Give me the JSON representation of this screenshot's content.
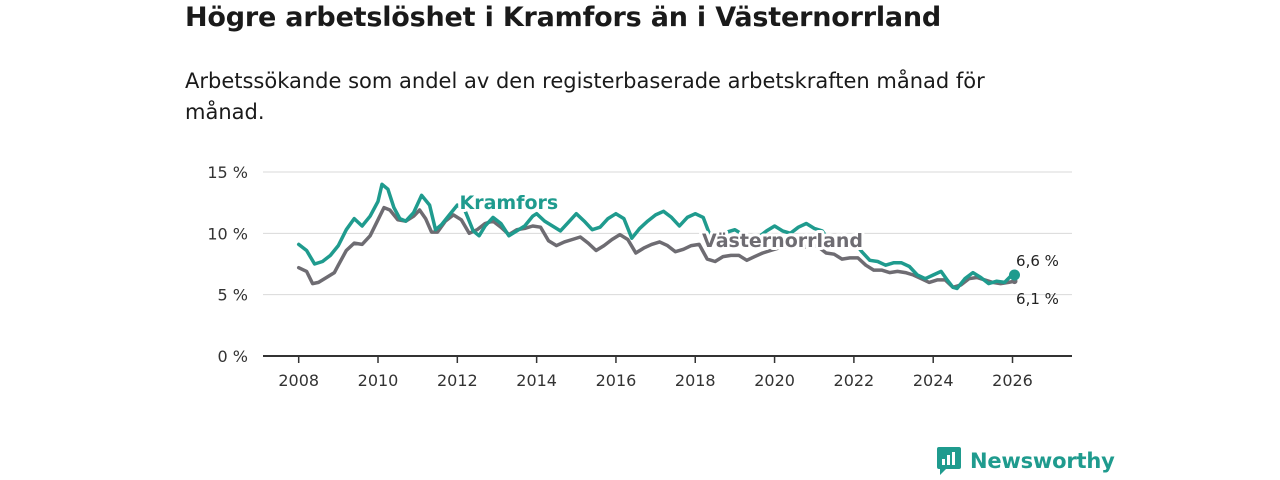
{
  "header": {
    "title": "Högre arbetslöshet i Kramfors än i Västernorrland",
    "subtitle": "Arbetssökande som andel av den registerbaserade arbetskraften månad för månad."
  },
  "brand": {
    "name": "Newsworthy",
    "color": "#1f9b8e",
    "icon": "bar-chart-speech-icon"
  },
  "chart_data": {
    "type": "line",
    "title": "Högre arbetslöshet i Kramfors än i Västernorrland",
    "xlabel": "",
    "ylabel": "",
    "xlim": [
      2007.1,
      2027.5
    ],
    "ylim": [
      0,
      15
    ],
    "grid": true,
    "x_ticks": [
      2008,
      2010,
      2012,
      2014,
      2016,
      2018,
      2020,
      2022,
      2024,
      2026
    ],
    "x_tick_labels": [
      "2008",
      "2010",
      "2012",
      "2014",
      "2016",
      "2018",
      "2020",
      "2022",
      "2024",
      "2026"
    ],
    "y_ticks": [
      0,
      5,
      10,
      15
    ],
    "y_tick_labels": [
      "0 %",
      "5 %",
      "10 %",
      "15 %"
    ],
    "series": [
      {
        "name": "Västernorrland",
        "color": "#6e6c72",
        "end_label": "6,1 %",
        "points": [
          [
            2008.0,
            7.2
          ],
          [
            2008.2,
            6.9
          ],
          [
            2008.35,
            5.9
          ],
          [
            2008.5,
            6.0
          ],
          [
            2008.7,
            6.4
          ],
          [
            2008.9,
            6.8
          ],
          [
            2009.0,
            7.4
          ],
          [
            2009.2,
            8.6
          ],
          [
            2009.4,
            9.2
          ],
          [
            2009.6,
            9.1
          ],
          [
            2009.8,
            9.8
          ],
          [
            2010.0,
            11.1
          ],
          [
            2010.15,
            12.1
          ],
          [
            2010.3,
            11.9
          ],
          [
            2010.5,
            11.1
          ],
          [
            2010.7,
            11.0
          ],
          [
            2010.9,
            11.4
          ],
          [
            2011.05,
            11.9
          ],
          [
            2011.2,
            11.2
          ],
          [
            2011.35,
            10.1
          ],
          [
            2011.5,
            10.1
          ],
          [
            2011.7,
            11.0
          ],
          [
            2011.9,
            11.5
          ],
          [
            2012.1,
            11.1
          ],
          [
            2012.3,
            10.0
          ],
          [
            2012.5,
            10.3
          ],
          [
            2012.7,
            10.8
          ],
          [
            2012.9,
            11.0
          ],
          [
            2013.1,
            10.5
          ],
          [
            2013.3,
            9.9
          ],
          [
            2013.5,
            10.3
          ],
          [
            2013.7,
            10.4
          ],
          [
            2013.9,
            10.6
          ],
          [
            2014.1,
            10.5
          ],
          [
            2014.3,
            9.4
          ],
          [
            2014.5,
            9.0
          ],
          [
            2014.7,
            9.3
          ],
          [
            2014.9,
            9.5
          ],
          [
            2015.1,
            9.7
          ],
          [
            2015.3,
            9.2
          ],
          [
            2015.5,
            8.6
          ],
          [
            2015.7,
            9.0
          ],
          [
            2015.9,
            9.5
          ],
          [
            2016.1,
            9.9
          ],
          [
            2016.3,
            9.5
          ],
          [
            2016.5,
            8.4
          ],
          [
            2016.7,
            8.8
          ],
          [
            2016.9,
            9.1
          ],
          [
            2017.1,
            9.3
          ],
          [
            2017.3,
            9.0
          ],
          [
            2017.5,
            8.5
          ],
          [
            2017.7,
            8.7
          ],
          [
            2017.9,
            9.0
          ],
          [
            2018.1,
            9.1
          ],
          [
            2018.3,
            7.9
          ],
          [
            2018.5,
            7.7
          ],
          [
            2018.7,
            8.1
          ],
          [
            2018.9,
            8.2
          ],
          [
            2019.1,
            8.2
          ],
          [
            2019.3,
            7.8
          ],
          [
            2019.5,
            8.1
          ],
          [
            2019.7,
            8.4
          ],
          [
            2019.9,
            8.6
          ],
          [
            2020.1,
            8.8
          ],
          [
            2020.3,
            8.9
          ],
          [
            2020.5,
            9.1
          ],
          [
            2020.7,
            8.8
          ],
          [
            2020.9,
            9.1
          ],
          [
            2021.1,
            8.9
          ],
          [
            2021.3,
            8.4
          ],
          [
            2021.5,
            8.3
          ],
          [
            2021.7,
            7.9
          ],
          [
            2021.9,
            8.0
          ],
          [
            2022.1,
            8.0
          ],
          [
            2022.3,
            7.4
          ],
          [
            2022.5,
            7.0
          ],
          [
            2022.7,
            7.0
          ],
          [
            2022.9,
            6.8
          ],
          [
            2023.1,
            6.9
          ],
          [
            2023.3,
            6.8
          ],
          [
            2023.5,
            6.6
          ],
          [
            2023.7,
            6.3
          ],
          [
            2023.9,
            6.0
          ],
          [
            2024.1,
            6.2
          ],
          [
            2024.3,
            6.2
          ],
          [
            2024.5,
            5.6
          ],
          [
            2024.7,
            5.8
          ],
          [
            2024.9,
            6.3
          ],
          [
            2025.1,
            6.4
          ],
          [
            2025.3,
            6.2
          ],
          [
            2025.5,
            6.0
          ],
          [
            2025.7,
            5.9
          ],
          [
            2025.9,
            6.0
          ],
          [
            2026.05,
            6.1
          ]
        ]
      },
      {
        "name": "Kramfors",
        "color": "#1f9b8e",
        "end_label": "6,6 %",
        "points": [
          [
            2008.0,
            9.1
          ],
          [
            2008.2,
            8.6
          ],
          [
            2008.4,
            7.5
          ],
          [
            2008.6,
            7.7
          ],
          [
            2008.8,
            8.2
          ],
          [
            2009.0,
            9.0
          ],
          [
            2009.2,
            10.3
          ],
          [
            2009.4,
            11.2
          ],
          [
            2009.6,
            10.6
          ],
          [
            2009.8,
            11.4
          ],
          [
            2010.0,
            12.6
          ],
          [
            2010.1,
            14.0
          ],
          [
            2010.25,
            13.6
          ],
          [
            2010.4,
            12.1
          ],
          [
            2010.55,
            11.2
          ],
          [
            2010.7,
            11.0
          ],
          [
            2010.9,
            11.7
          ],
          [
            2011.1,
            13.1
          ],
          [
            2011.3,
            12.3
          ],
          [
            2011.45,
            10.3
          ],
          [
            2011.6,
            10.7
          ],
          [
            2011.8,
            11.5
          ],
          [
            2012.0,
            12.3
          ],
          [
            2012.2,
            11.8
          ],
          [
            2012.4,
            10.2
          ],
          [
            2012.55,
            9.8
          ],
          [
            2012.7,
            10.6
          ],
          [
            2012.9,
            11.3
          ],
          [
            2013.1,
            10.8
          ],
          [
            2013.3,
            9.8
          ],
          [
            2013.5,
            10.2
          ],
          [
            2013.7,
            10.6
          ],
          [
            2013.9,
            11.4
          ],
          [
            2014.0,
            11.6
          ],
          [
            2014.2,
            11.0
          ],
          [
            2014.4,
            10.6
          ],
          [
            2014.6,
            10.2
          ],
          [
            2014.8,
            10.9
          ],
          [
            2015.0,
            11.6
          ],
          [
            2015.2,
            11.0
          ],
          [
            2015.4,
            10.3
          ],
          [
            2015.6,
            10.5
          ],
          [
            2015.8,
            11.2
          ],
          [
            2016.0,
            11.6
          ],
          [
            2016.2,
            11.2
          ],
          [
            2016.4,
            9.6
          ],
          [
            2016.6,
            10.4
          ],
          [
            2016.8,
            11.0
          ],
          [
            2017.0,
            11.5
          ],
          [
            2017.2,
            11.8
          ],
          [
            2017.4,
            11.3
          ],
          [
            2017.6,
            10.6
          ],
          [
            2017.8,
            11.3
          ],
          [
            2018.0,
            11.6
          ],
          [
            2018.2,
            11.3
          ],
          [
            2018.4,
            9.6
          ],
          [
            2018.6,
            9.4
          ],
          [
            2018.8,
            10.1
          ],
          [
            2019.0,
            10.3
          ],
          [
            2019.2,
            9.9
          ],
          [
            2019.4,
            9.4
          ],
          [
            2019.6,
            9.7
          ],
          [
            2019.8,
            10.2
          ],
          [
            2020.0,
            10.6
          ],
          [
            2020.2,
            10.2
          ],
          [
            2020.4,
            10.0
          ],
          [
            2020.6,
            10.5
          ],
          [
            2020.8,
            10.8
          ],
          [
            2021.0,
            10.4
          ],
          [
            2021.2,
            10.2
          ],
          [
            2021.4,
            9.3
          ],
          [
            2021.6,
            9.0
          ],
          [
            2021.8,
            9.2
          ],
          [
            2022.0,
            9.3
          ],
          [
            2022.2,
            8.5
          ],
          [
            2022.4,
            7.8
          ],
          [
            2022.6,
            7.7
          ],
          [
            2022.8,
            7.4
          ],
          [
            2023.0,
            7.6
          ],
          [
            2023.2,
            7.6
          ],
          [
            2023.4,
            7.3
          ],
          [
            2023.6,
            6.6
          ],
          [
            2023.8,
            6.3
          ],
          [
            2024.0,
            6.6
          ],
          [
            2024.2,
            6.9
          ],
          [
            2024.35,
            6.2
          ],
          [
            2024.5,
            5.6
          ],
          [
            2024.6,
            5.5
          ],
          [
            2024.8,
            6.3
          ],
          [
            2025.0,
            6.8
          ],
          [
            2025.2,
            6.4
          ],
          [
            2025.4,
            5.9
          ],
          [
            2025.6,
            6.1
          ],
          [
            2025.8,
            6.0
          ],
          [
            2025.95,
            6.5
          ],
          [
            2026.05,
            6.6
          ]
        ]
      }
    ],
    "series_labels": [
      {
        "series": "Kramfors",
        "text": "Kramfors",
        "x": 2013.3,
        "y": 12.0
      },
      {
        "series": "Västernorrland",
        "text": "Västernorrland",
        "x": 2020.2,
        "y": 8.9
      }
    ]
  }
}
